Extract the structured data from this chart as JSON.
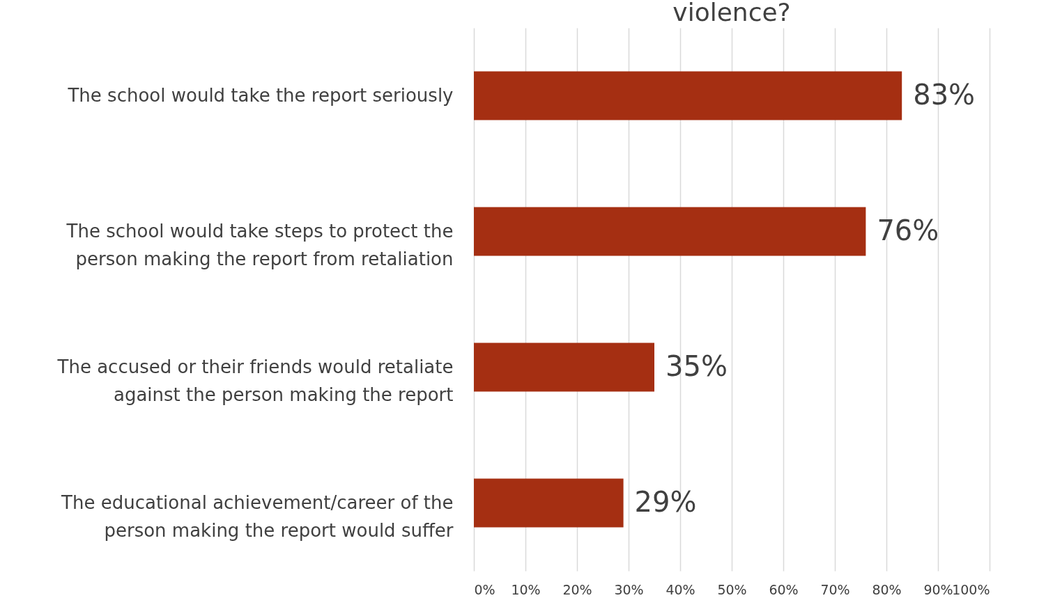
{
  "chart_data": {
    "type": "bar",
    "orientation": "horizontal",
    "title": "violence?",
    "categories": [
      "The school would take the report seriously",
      "The school would take steps to protect the person making the report from retaliation",
      "The accused or their friends would retaliate against the person making the report",
      "The educational achievement/career of the person making the report would suffer"
    ],
    "values": [
      83,
      76,
      35,
      29
    ],
    "color": "#a52f12",
    "xlim": [
      0,
      100
    ],
    "xticks": [
      {
        "value": 0,
        "label": "0%"
      },
      {
        "value": 10,
        "label": "10%"
      },
      {
        "value": 20,
        "label": "20%"
      },
      {
        "value": 30,
        "label": "30%"
      },
      {
        "value": 40,
        "label": "40%"
      },
      {
        "value": 50,
        "label": "50%"
      },
      {
        "value": 60,
        "label": "60%"
      },
      {
        "value": 70,
        "label": "70%"
      },
      {
        "value": 80,
        "label": "80%"
      },
      {
        "value": 90,
        "label": "90%"
      },
      {
        "value": 100,
        "label": "100%"
      }
    ],
    "value_labels": [
      "83%",
      "76%",
      "35%",
      "29%"
    ],
    "grid": "x"
  }
}
